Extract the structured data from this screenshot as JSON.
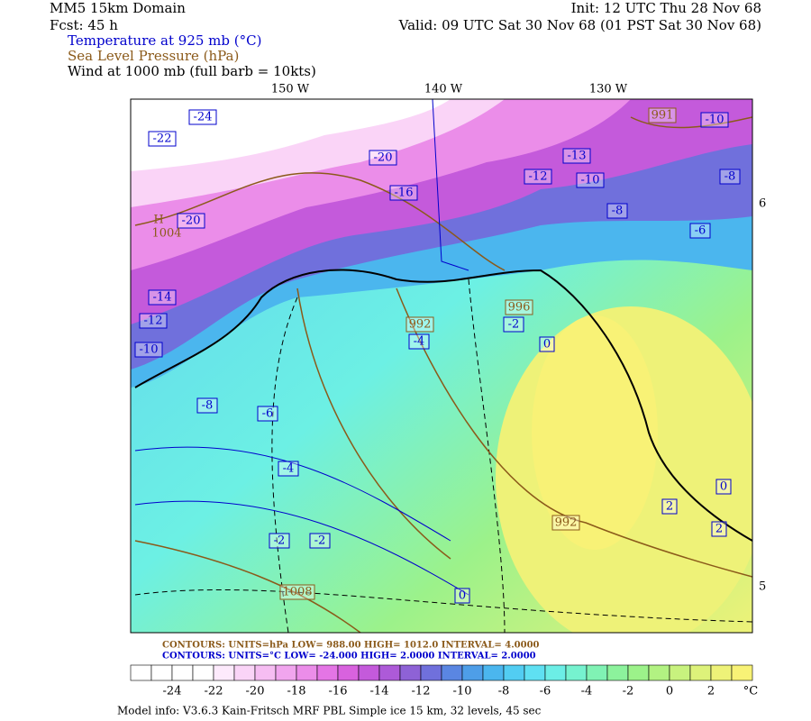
{
  "header": {
    "left": [
      "MM5 15km Domain",
      "Fcst:    45 h"
    ],
    "right": [
      "Init: 12 UTC Thu 28 Nov 68",
      "Valid: 09 UTC Sat 30 Nov 68 (01 PST Sat 30 Nov 68)"
    ],
    "fields": [
      {
        "text": "Temperature at 925 mb (°C)",
        "color": "#0000cc"
      },
      {
        "text": "Sea Level Pressure (hPa)",
        "color": "#8b5a1a"
      },
      {
        "text": "Wind at 1000 mb (full barb = 10kts)",
        "color": "#000000"
      }
    ]
  },
  "map": {
    "lon_labels": [
      "150 W",
      "140 W",
      "130 W"
    ],
    "lat_labels": [
      "6",
      "5"
    ],
    "temperature_labels": [
      "-24",
      "-22",
      "-20",
      "-14",
      "-12",
      "-10",
      "-8",
      "-6",
      "-4",
      "-2",
      "-2",
      "0",
      "-4",
      "-16",
      "-20",
      "-12",
      "-13",
      "-10",
      "-8",
      "-8",
      "-10",
      "-6",
      "-2",
      "0",
      "2",
      "0",
      "2"
    ],
    "pressure_labels": [
      "991",
      "H",
      "1004",
      "992",
      "996",
      "992",
      "1008"
    ]
  },
  "contour_info": [
    {
      "text": "CONTOURS:  UNITS=hPa  LOW=  988.00      HIGH=  1012.0      INTERVAL=   4.0000",
      "color": "#8b5a1a"
    },
    {
      "text": "CONTOURS:  UNITS=°C  LOW= -24.000      HIGH=  2.0000      INTERVAL=   2.0000",
      "color": "#0000cc"
    }
  ],
  "colorbar": {
    "labels": [
      "-24",
      "-22",
      "-20",
      "-18",
      "-16",
      "-14",
      "-12",
      "-10",
      "-8",
      "-6",
      "-4",
      "-2",
      "0",
      "2",
      "°C"
    ],
    "colors": [
      "#ffffff",
      "#ffffff",
      "#ffffff",
      "#ffffff",
      "#fdeafc",
      "#fad4f7",
      "#f6bdf2",
      "#f1a5ee",
      "#eb8de9",
      "#e475e5",
      "#d862de",
      "#c45adb",
      "#ad5ad8",
      "#8e62d6",
      "#7070dc",
      "#5a86e2",
      "#4e9ee8",
      "#4bb6ee",
      "#52cdf2",
      "#5fe0f2",
      "#6ceee6",
      "#76f2cf",
      "#80f2b4",
      "#8cf29c",
      "#9cf28a",
      "#b2f282",
      "#c8f27e",
      "#ddf27a",
      "#eef278",
      "#f8f276"
    ]
  },
  "footer": "Model info: V3.6.3 Kain-Fritsch MRF PBL     Simple ice    15 km,  32 levels,   45 sec"
}
